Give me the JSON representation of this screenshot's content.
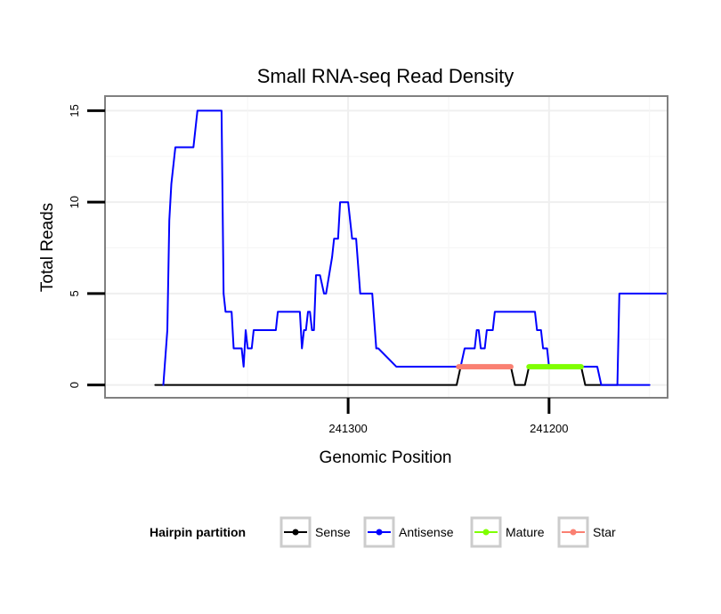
{
  "chart_data": {
    "type": "line",
    "title": "Small RNA-seq Read Density",
    "xlabel": "Genomic Position",
    "ylabel": "Total Reads",
    "xlim": [
      241421,
      241141
    ],
    "ylim": [
      -0.7,
      15.8
    ],
    "x_reversed": true,
    "x_ticks": [
      {
        "value": 241300,
        "label": "241300"
      },
      {
        "value": 241200,
        "label": "241200"
      }
    ],
    "y_ticks": [
      {
        "value": 0,
        "label": "0"
      },
      {
        "value": 5,
        "label": "5"
      },
      {
        "value": 10,
        "label": "10"
      },
      {
        "value": 15,
        "label": "15"
      }
    ],
    "grid": true,
    "legend": {
      "position": "bottom",
      "title": "Hairpin partition",
      "entries": [
        {
          "name": "Sense",
          "color": "#000000"
        },
        {
          "name": "Antisense",
          "color": "#0000ff"
        },
        {
          "name": "Mature",
          "color": "#7fff00"
        },
        {
          "name": "Star",
          "color": "#fa8072"
        }
      ]
    },
    "series": [
      {
        "name": "Sense",
        "color": "#000000",
        "x": [
          241396,
          241246,
          241244,
          241219,
          241217,
          241212,
          241210,
          241184,
          241182,
          241166
        ],
        "y": [
          0,
          0,
          1,
          1,
          0,
          0,
          1,
          1,
          0,
          0
        ]
      },
      {
        "name": "Antisense",
        "color": "#0000ff",
        "x": [
          241392,
          241390,
          241389,
          241389,
          241388,
          241386,
          241384,
          241377,
          241375,
          241364,
          241363,
          241362,
          241361,
          241358,
          241357,
          241353,
          241352,
          241351,
          241350,
          241349,
          241348,
          241347,
          241343,
          241342,
          241336,
          241335,
          241324,
          241323,
          241322,
          241321,
          241320,
          241319,
          241318,
          241317,
          241316,
          241314,
          241312,
          241311,
          241308,
          241307,
          241305,
          241304,
          241301,
          241300,
          241298,
          241296,
          241294,
          241293,
          241289,
          241288,
          241286,
          241285,
          241276,
          241275,
          241271,
          241270,
          241265,
          241264,
          241255,
          241254,
          241244,
          241242,
          241237,
          241236,
          241235,
          241234,
          241232,
          241231,
          241228,
          241227,
          241225,
          241224,
          241222,
          241221,
          241207,
          241206,
          241204,
          241203,
          241201,
          241200,
          241198,
          241197,
          241188,
          241187,
          241176,
          241174,
          241150
        ],
        "y": [
          0,
          3,
          9,
          9,
          11,
          13,
          13,
          13,
          15,
          15,
          15,
          5,
          4,
          4,
          2,
          2,
          1,
          3,
          2,
          2,
          2,
          3,
          3,
          3,
          3,
          4,
          4,
          2,
          3,
          3,
          4,
          4,
          3,
          3,
          6,
          6,
          5,
          5,
          7,
          8,
          8,
          10,
          10,
          10,
          8,
          8,
          5,
          5,
          5,
          5,
          2,
          2,
          1,
          1,
          1,
          1,
          1,
          1,
          1,
          1,
          1,
          2,
          2,
          3,
          3,
          2,
          2,
          3,
          3,
          4,
          4,
          4,
          4,
          4,
          4,
          3,
          3,
          2,
          2,
          1,
          1,
          1,
          1,
          1,
          1,
          0,
          0
        ]
      },
      {
        "name": "Antisense (tail)",
        "color": "#0000ff",
        "x": [
          241166,
          241165,
          241141
        ],
        "y": [
          0,
          5,
          5
        ]
      },
      {
        "name": "Star",
        "color": "#fa8072",
        "x": [
          241245,
          241219
        ],
        "y": [
          1,
          1
        ]
      },
      {
        "name": "Mature",
        "color": "#7fff00",
        "x": [
          241210,
          241184
        ],
        "y": [
          1,
          1
        ]
      }
    ]
  }
}
